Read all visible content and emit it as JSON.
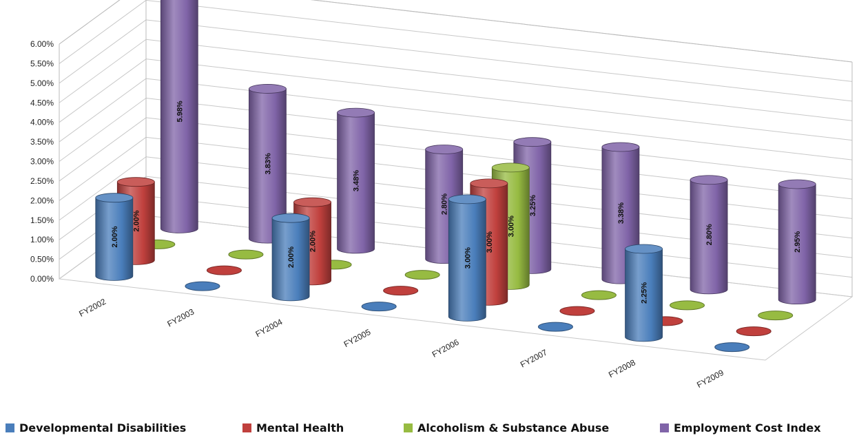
{
  "chart_data": {
    "type": "bar",
    "subtype": "3d-cylinder-grid",
    "categories": [
      "FY2002",
      "FY2003",
      "FY2004",
      "FY2005",
      "FY2006",
      "FY2007",
      "FY2008",
      "FY2009"
    ],
    "y_ticks": [
      "0.00%",
      "0.50%",
      "1.00%",
      "1.50%",
      "2.00%",
      "2.50%",
      "3.00%",
      "3.50%",
      "4.00%",
      "4.50%",
      "5.00%",
      "5.50%",
      "6.00%"
    ],
    "ylim": [
      0,
      6
    ],
    "grid": true,
    "legend": "bottom",
    "series": [
      {
        "name": "Developmental Disabilities",
        "color": "#4a7ebb",
        "values": [
          2.0,
          0,
          2.0,
          0,
          3.0,
          0,
          2.25,
          0
        ],
        "labels": [
          "2.00%",
          "",
          "2.00%",
          "",
          "3.00%",
          "",
          "2.25%",
          ""
        ]
      },
      {
        "name": "Mental Health",
        "color": "#c0403d",
        "values": [
          2.0,
          0,
          2.0,
          0,
          3.0,
          0,
          0,
          0
        ],
        "labels": [
          "2.00%",
          "",
          "2.00%",
          "",
          "3.00%",
          "",
          "",
          ""
        ]
      },
      {
        "name": "Alcoholism & Substance Abuse",
        "color": "#97bb42",
        "values": [
          0,
          0,
          0,
          0,
          3.0,
          0,
          0,
          0
        ],
        "labels": [
          "",
          "",
          "",
          "",
          "3.00%",
          "",
          "",
          ""
        ]
      },
      {
        "name": "Employment Cost Index",
        "color": "#8064a8",
        "values": [
          5.98,
          3.83,
          3.48,
          2.8,
          3.25,
          3.38,
          2.8,
          2.95
        ],
        "labels": [
          "5.98%",
          "3.83%",
          "3.48%",
          "2.80%",
          "3.25%",
          "3.38%",
          "2.80%",
          "2.95%"
        ]
      }
    ]
  }
}
